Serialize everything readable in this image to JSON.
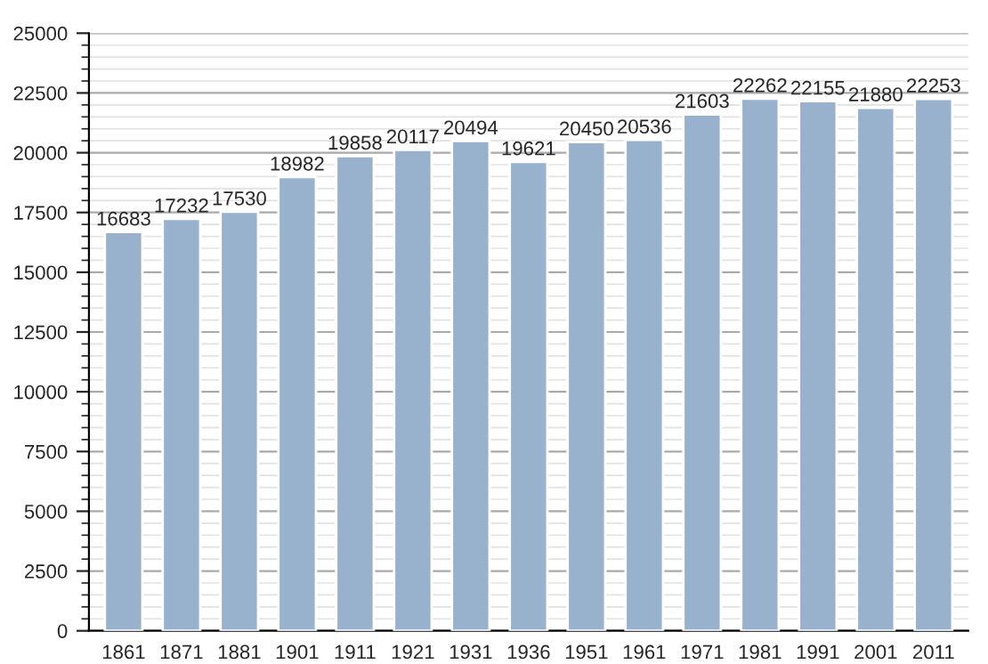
{
  "chart_data": {
    "type": "bar",
    "categories": [
      "1861",
      "1871",
      "1881",
      "1901",
      "1911",
      "1921",
      "1931",
      "1936",
      "1951",
      "1961",
      "1971",
      "1981",
      "1991",
      "2001",
      "2011"
    ],
    "values": [
      16683,
      17232,
      17530,
      18982,
      19858,
      20117,
      20494,
      19621,
      20450,
      20536,
      21603,
      22262,
      22155,
      21880,
      22253
    ],
    "color": "#98b1cc",
    "ylim": [
      0,
      25000
    ],
    "yticks": [
      0,
      2500,
      5000,
      7500,
      10000,
      12500,
      15000,
      17500,
      20000,
      22500,
      25000
    ],
    "grid": "y",
    "data_labels": true
  }
}
